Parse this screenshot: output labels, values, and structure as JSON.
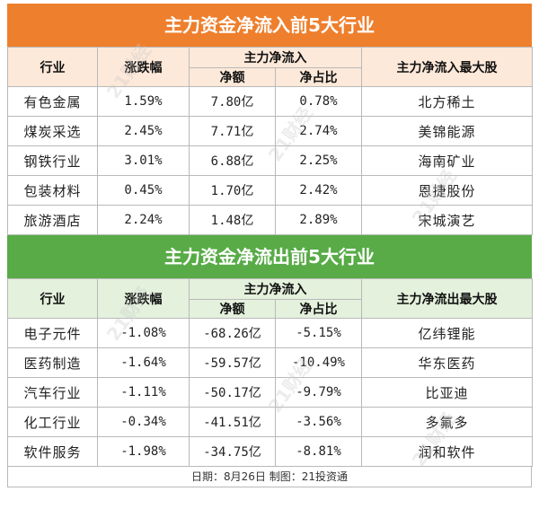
{
  "inflow": {
    "title": "主力资金净流入前5大行业",
    "headers": {
      "sector": "行业",
      "change": "涨跌幅",
      "main_flow": "主力净流入",
      "net_amount": "净额",
      "net_ratio": "净占比",
      "top_stock": "主力净流入最大股"
    },
    "rows": [
      {
        "sector": "有色金属",
        "change": "1.59%",
        "net_amount": "7.80亿",
        "net_ratio": "0.78%",
        "top_stock": "北方稀土"
      },
      {
        "sector": "煤炭采选",
        "change": "2.45%",
        "net_amount": "7.71亿",
        "net_ratio": "2.74%",
        "top_stock": "美锦能源"
      },
      {
        "sector": "钢铁行业",
        "change": "3.01%",
        "net_amount": "6.88亿",
        "net_ratio": "2.25%",
        "top_stock": "海南矿业"
      },
      {
        "sector": "包装材料",
        "change": "0.45%",
        "net_amount": "1.70亿",
        "net_ratio": "2.42%",
        "top_stock": "恩捷股份"
      },
      {
        "sector": "旅游酒店",
        "change": "2.24%",
        "net_amount": "1.48亿",
        "net_ratio": "2.89%",
        "top_stock": "宋城演艺"
      }
    ]
  },
  "outflow": {
    "title": "主力资金净流出前5大行业",
    "headers": {
      "sector": "行业",
      "change": "涨跌幅",
      "main_flow": "主力净流入",
      "net_amount": "净额",
      "net_ratio": "净占比",
      "top_stock": "主力净流出最大股"
    },
    "rows": [
      {
        "sector": "电子元件",
        "change": "-1.08%",
        "net_amount": "-68.26亿",
        "net_ratio": "-5.15%",
        "top_stock": "亿纬锂能"
      },
      {
        "sector": "医药制造",
        "change": "-1.64%",
        "net_amount": "-59.57亿",
        "net_ratio": "-10.49%",
        "top_stock": "华东医药"
      },
      {
        "sector": "汽车行业",
        "change": "-1.11%",
        "net_amount": "-50.17亿",
        "net_ratio": "-9.79%",
        "top_stock": "比亚迪"
      },
      {
        "sector": "化工行业",
        "change": "-0.34%",
        "net_amount": "-41.51亿",
        "net_ratio": "-3.56%",
        "top_stock": "多氟多"
      },
      {
        "sector": "软件服务",
        "change": "-1.98%",
        "net_amount": "-34.75亿",
        "net_ratio": "-8.81%",
        "top_stock": "润和软件"
      }
    ]
  },
  "footer": "日期：8月26日  制图：21投资通",
  "watermark": "21财经",
  "colors": {
    "inflow_banner": "#ee7f2d",
    "outflow_banner": "#58ab47",
    "inflow_header": "#fde9d9",
    "outflow_header": "#e4f1dd"
  }
}
